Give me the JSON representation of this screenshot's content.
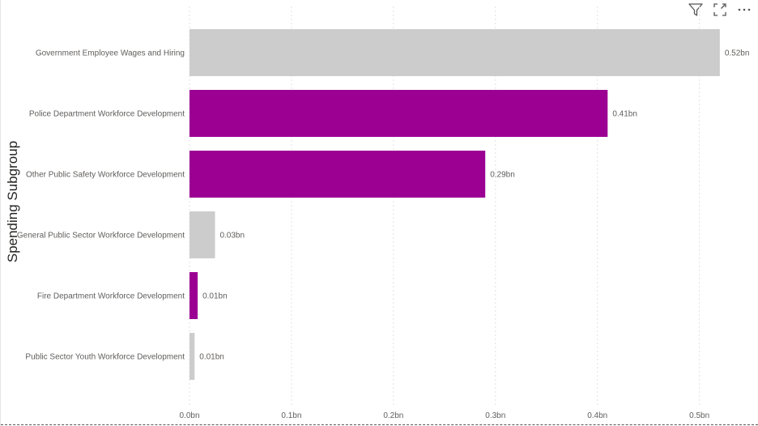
{
  "toolbar": {
    "filter_icon": "filter-icon",
    "focus_icon": "focus-mode-icon",
    "more_icon": "more-options-icon"
  },
  "chart_data": {
    "type": "bar",
    "orientation": "horizontal",
    "ylabel": "Spending Subgroup",
    "xlabel": "",
    "categories": [
      "Government Employee Wages and Hiring",
      "Police Department Workforce Development",
      "Other Public Safety Workforce Development",
      "General Public Sector Workforce Development",
      "Fire Department Workforce Development",
      "Public Sector Youth Workforce Development"
    ],
    "values": [
      0.52,
      0.41,
      0.29,
      0.025,
      0.008,
      0.005
    ],
    "data_labels": [
      "0.52bn",
      "0.41bn",
      "0.29bn",
      "0.03bn",
      "0.01bn",
      "0.01bn"
    ],
    "highlighted": [
      false,
      true,
      true,
      false,
      true,
      false
    ],
    "xlim": [
      0,
      0.5225
    ],
    "x_ticks": [
      0,
      0.1,
      0.2,
      0.3,
      0.4,
      0.5
    ],
    "x_tick_labels": [
      "0.0bn",
      "0.1bn",
      "0.2bn",
      "0.3bn",
      "0.4bn",
      "0.5bn"
    ],
    "grid": "vertical-dotted",
    "legend": "none",
    "colors": {
      "highlight": "#9B0093",
      "default": "#CCCCCC",
      "label": "#605E5C",
      "grid": "#E1E1E1"
    }
  }
}
